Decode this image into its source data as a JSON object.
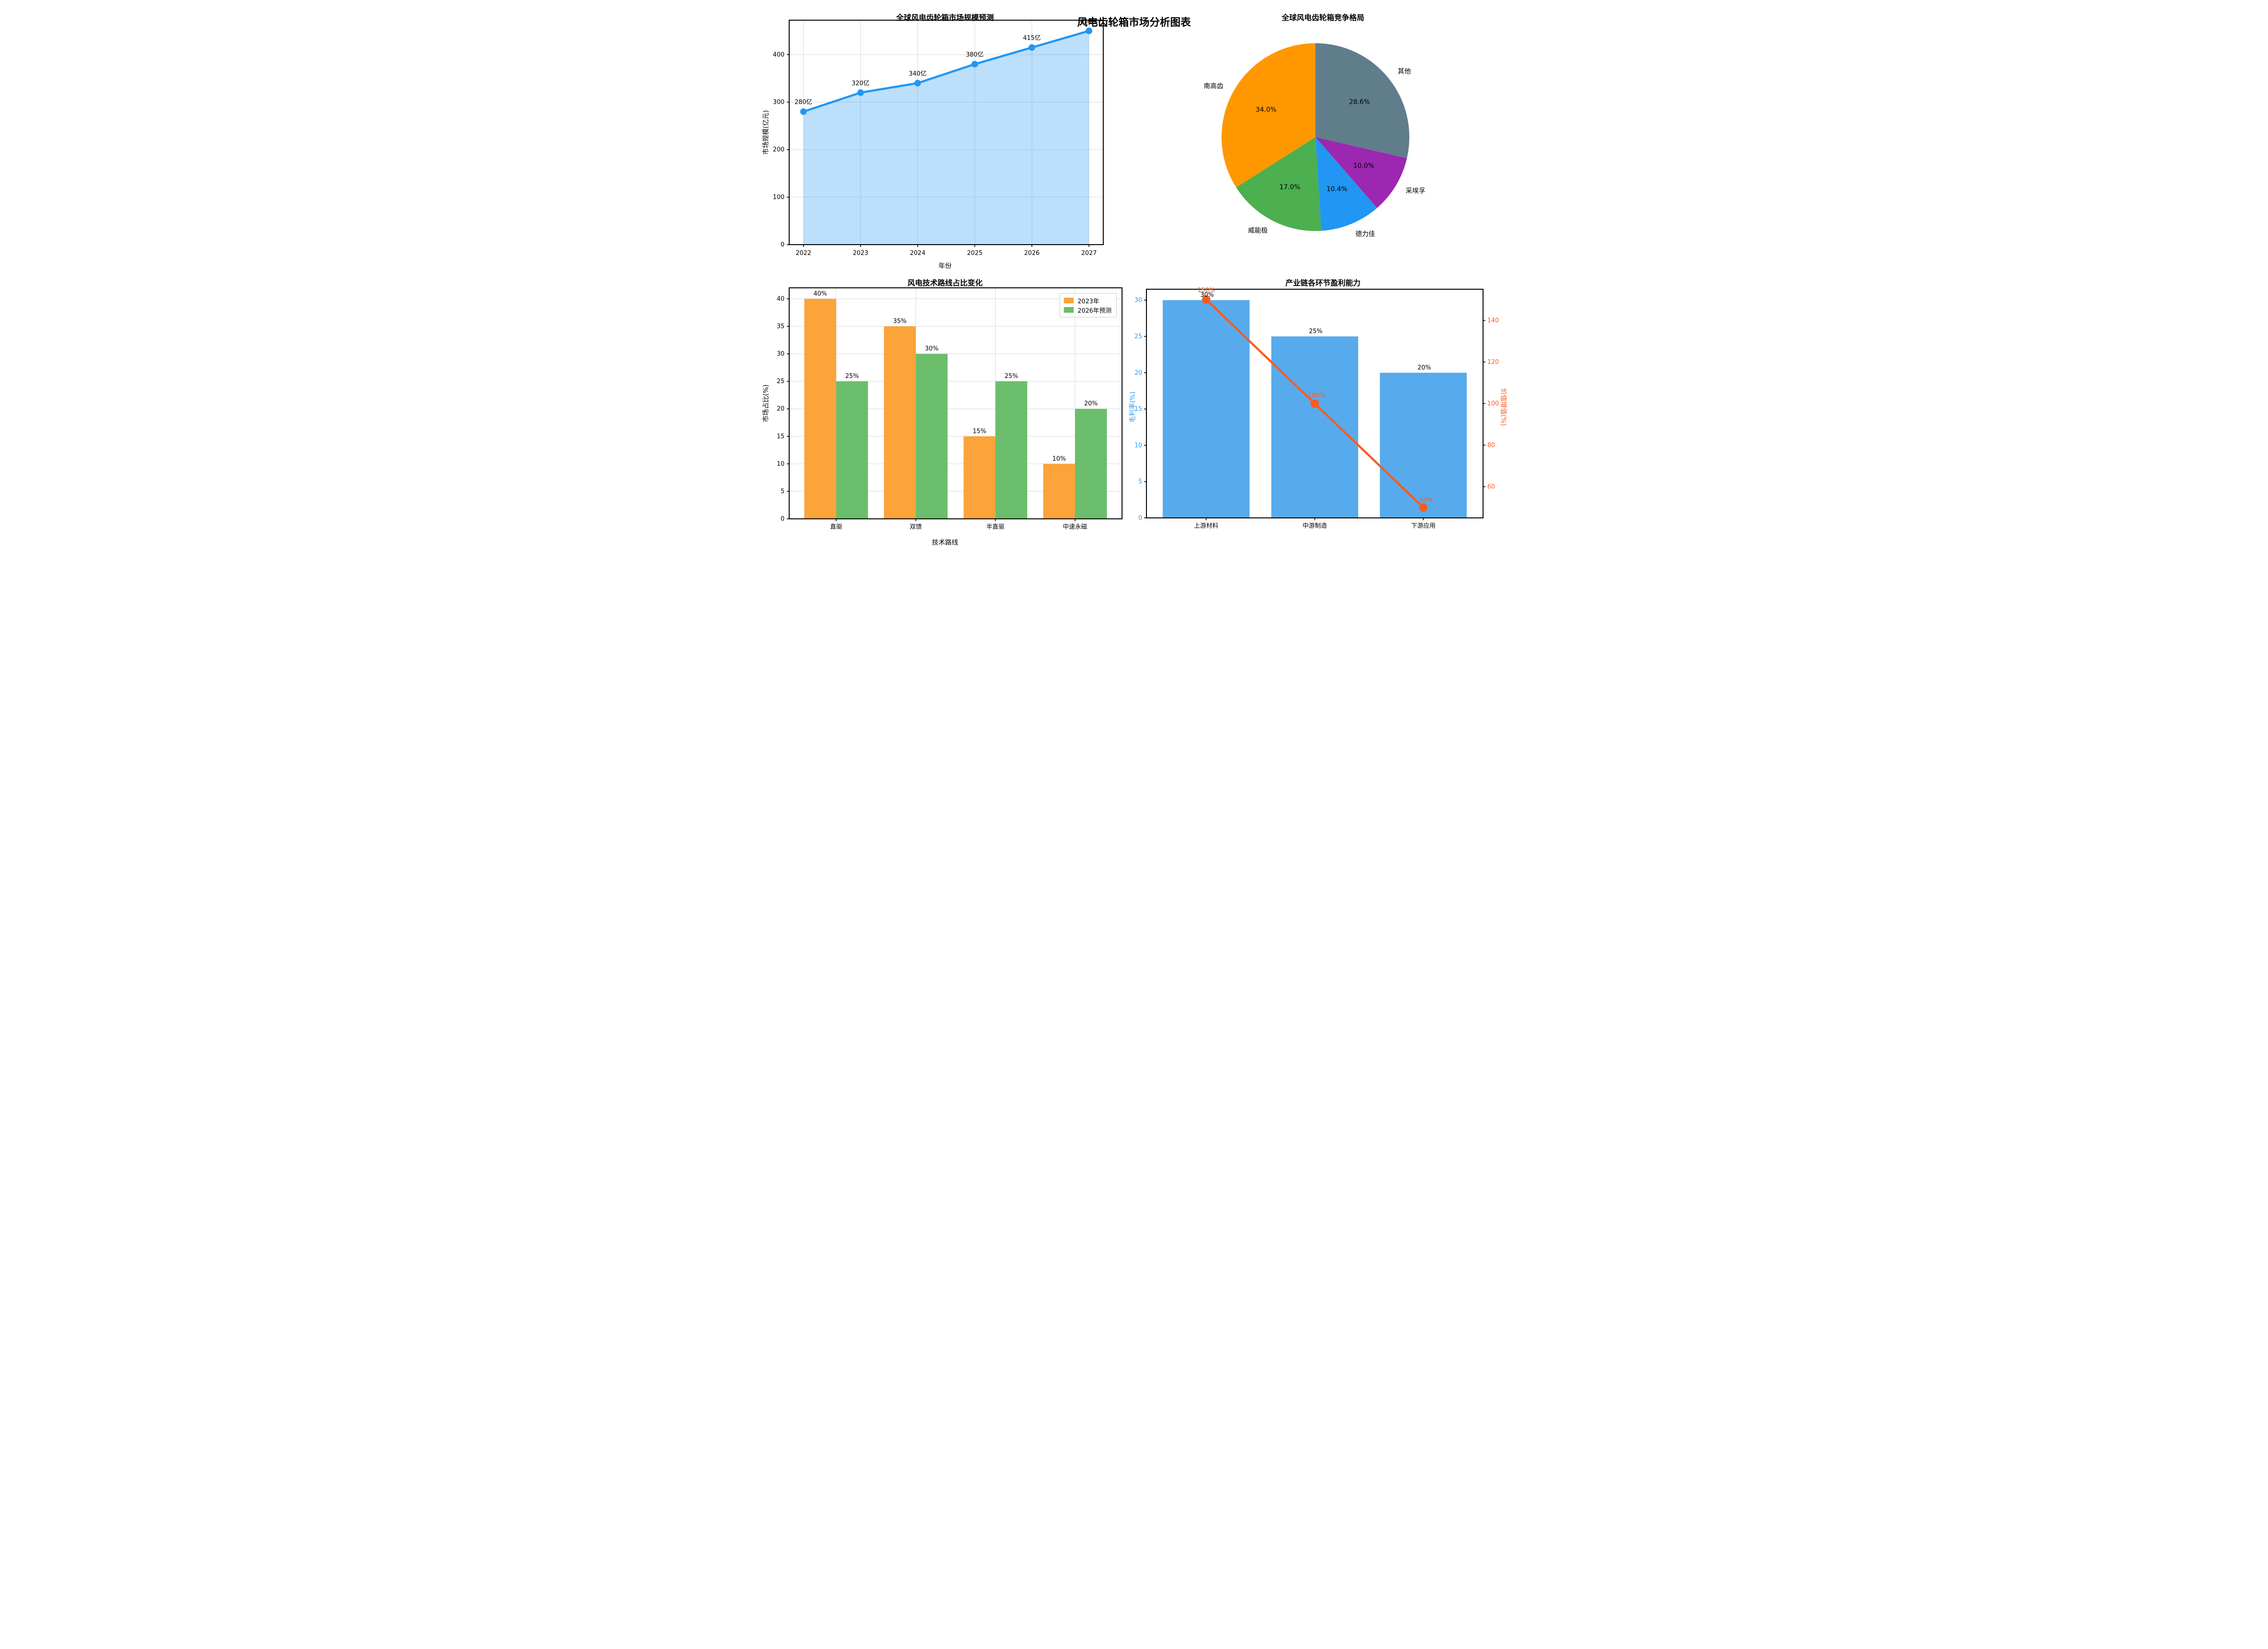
{
  "figure": {
    "title": "风电齿轮箱市场分析图表"
  },
  "chart_data": [
    {
      "type": "area-line",
      "title": "全球风电齿轮箱市场规模预测",
      "xlabel": "年份",
      "ylabel": "市场规模(亿元)",
      "x": [
        2022,
        2023,
        2024,
        2025,
        2026,
        2027
      ],
      "values": [
        280,
        320,
        340,
        380,
        415,
        450
      ],
      "point_labels": [
        "280亿",
        "320亿",
        "340亿",
        "380亿",
        "415亿",
        "450亿"
      ],
      "xlim": [
        2021.75,
        2027.25
      ],
      "ylim": [
        0,
        472.5
      ],
      "yticks": [
        0,
        100,
        200,
        300,
        400
      ],
      "grid": true,
      "line_color": "#2196F3",
      "fill_color": "rgba(33,150,243,0.30)"
    },
    {
      "type": "pie",
      "title": "全球风电齿轮箱竞争格局",
      "start_angle": 90,
      "counterclock": true,
      "slices": [
        {
          "label": "南高齿",
          "value": 34.0,
          "pct_label": "34.0%",
          "color": "#FF9800"
        },
        {
          "label": "威能极",
          "value": 17.0,
          "pct_label": "17.0%",
          "color": "#4CAF50"
        },
        {
          "label": "德力佳",
          "value": 10.4,
          "pct_label": "10.4%",
          "color": "#2196F3"
        },
        {
          "label": "采埃孚",
          "value": 10.0,
          "pct_label": "10.0%",
          "color": "#9C27B0"
        },
        {
          "label": "其他",
          "value": 28.6,
          "pct_label": "28.6%",
          "color": "#607D8B"
        }
      ]
    },
    {
      "type": "grouped-bar",
      "title": "风电技术路线占比变化",
      "xlabel": "技术路线",
      "ylabel": "市场占比(%)",
      "categories": [
        "直驱",
        "双馈",
        "半直驱",
        "中速永磁"
      ],
      "series": [
        {
          "name": "2023年",
          "color": "#FAA43A",
          "values": [
            40,
            35,
            15,
            10
          ],
          "bar_labels": [
            "40%",
            "35%",
            "15%",
            "10%"
          ]
        },
        {
          "name": "2026年预测",
          "color": "#6BBE6B",
          "values": [
            25,
            30,
            25,
            20
          ],
          "bar_labels": [
            "25%",
            "30%",
            "25%",
            "20%"
          ]
        }
      ],
      "ylim": [
        0,
        42
      ],
      "yticks": [
        0,
        5,
        10,
        15,
        20,
        25,
        30,
        35,
        40
      ],
      "grid": true
    },
    {
      "type": "bar-line-dual",
      "title": "产业链各环节盈利能力",
      "categories": [
        "上游材料",
        "中游制造",
        "下游应用"
      ],
      "bars": {
        "axis_label": "毛利率(%)",
        "color": "#57ABEC",
        "axis_color": "#2E9BF3",
        "values": [
          30,
          25,
          20
        ],
        "bar_labels": [
          "30%",
          "25%",
          "20%"
        ],
        "ylim": [
          0,
          31.5
        ],
        "yticks": [
          0,
          5,
          10,
          15,
          20,
          25,
          30
        ]
      },
      "line": {
        "axis_label": "价值增值(%)",
        "color": "#FB5B21",
        "values": [
          150,
          100,
          50
        ],
        "point_labels": [
          "150%",
          "100%",
          "50%"
        ],
        "ylim": [
          45,
          155
        ],
        "yticks": [
          60,
          80,
          100,
          120,
          140
        ]
      }
    }
  ]
}
